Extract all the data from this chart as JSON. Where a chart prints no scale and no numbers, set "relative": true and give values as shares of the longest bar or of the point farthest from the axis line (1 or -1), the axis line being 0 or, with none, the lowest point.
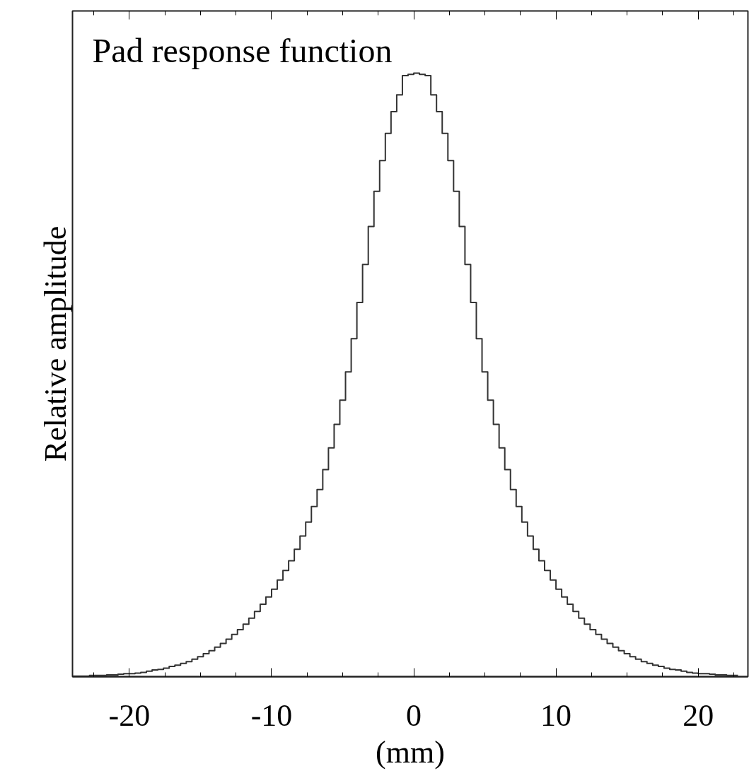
{
  "chart_data": {
    "type": "step",
    "title": "Pad response function",
    "xlabel": "(mm)",
    "ylabel": "Relative amplitude",
    "relative": true,
    "grid": false,
    "tick_labels": "x",
    "xlim": [
      -24,
      23.5
    ],
    "xticks": [
      {
        "value": -20,
        "label": "-20"
      },
      {
        "value": -10,
        "label": "-10"
      },
      {
        "value": 0,
        "label": "0"
      },
      {
        "value": 10,
        "label": "10"
      },
      {
        "value": 20,
        "label": "20"
      }
    ],
    "x": [
      -24.0,
      -23.6,
      -23.2,
      -22.8,
      -22.4,
      -22.0,
      -21.6,
      -21.2,
      -20.8,
      -20.4,
      -20.0,
      -19.6,
      -19.2,
      -18.8,
      -18.4,
      -18.0,
      -17.6,
      -17.2,
      -16.8,
      -16.4,
      -16.0,
      -15.6,
      -15.2,
      -14.8,
      -14.4,
      -14.0,
      -13.6,
      -13.2,
      -12.8,
      -12.4,
      -12.0,
      -11.6,
      -11.2,
      -10.8,
      -10.4,
      -10.0,
      -9.6,
      -9.2,
      -8.8,
      -8.4,
      -8.0,
      -7.6,
      -7.2,
      -6.8,
      -6.4,
      -6.0,
      -5.6,
      -5.2,
      -4.8,
      -4.4,
      -4.0,
      -3.6,
      -3.2,
      -2.8,
      -2.4,
      -2.0,
      -1.6,
      -1.2,
      -0.8,
      -0.4,
      0.0,
      0.4,
      0.8,
      1.2,
      1.6,
      2.0,
      2.4,
      2.8,
      3.2,
      3.6,
      4.0,
      4.4,
      4.8,
      5.2,
      5.6,
      6.0,
      6.4,
      6.8,
      7.2,
      7.6,
      8.0,
      8.4,
      8.8,
      9.2,
      9.6,
      10.0,
      10.4,
      10.8,
      11.2,
      11.6,
      12.0,
      12.4,
      12.8,
      13.2,
      13.6,
      14.0,
      14.4,
      14.8,
      15.2,
      15.6,
      16.0,
      16.4,
      16.8,
      17.2,
      17.6,
      18.0,
      18.4,
      18.8,
      19.2,
      19.6,
      20.0,
      20.4,
      20.8,
      21.2,
      21.6,
      22.0,
      22.4,
      22.8
    ],
    "series": [
      {
        "color": "#333333",
        "values": [
          0.001,
          0.001,
          0.001,
          0.002,
          0.002,
          0.002,
          0.003,
          0.003,
          0.004,
          0.005,
          0.005,
          0.006,
          0.007,
          0.009,
          0.011,
          0.012,
          0.014,
          0.017,
          0.019,
          0.022,
          0.025,
          0.029,
          0.033,
          0.038,
          0.043,
          0.049,
          0.055,
          0.062,
          0.07,
          0.078,
          0.087,
          0.097,
          0.108,
          0.12,
          0.132,
          0.145,
          0.16,
          0.176,
          0.192,
          0.211,
          0.233,
          0.256,
          0.282,
          0.31,
          0.343,
          0.379,
          0.418,
          0.458,
          0.505,
          0.56,
          0.62,
          0.683,
          0.746,
          0.804,
          0.855,
          0.9,
          0.936,
          0.964,
          0.996,
          0.998,
          1.0,
          0.998,
          0.996,
          0.964,
          0.936,
          0.9,
          0.855,
          0.804,
          0.746,
          0.683,
          0.62,
          0.56,
          0.505,
          0.458,
          0.418,
          0.379,
          0.343,
          0.31,
          0.282,
          0.256,
          0.233,
          0.211,
          0.192,
          0.176,
          0.16,
          0.145,
          0.132,
          0.12,
          0.108,
          0.097,
          0.087,
          0.078,
          0.07,
          0.062,
          0.055,
          0.049,
          0.043,
          0.038,
          0.033,
          0.029,
          0.025,
          0.022,
          0.019,
          0.017,
          0.014,
          0.012,
          0.011,
          0.009,
          0.007,
          0.006,
          0.005,
          0.005,
          0.004,
          0.003,
          0.003,
          0.002,
          0.002,
          0.002
        ]
      }
    ]
  }
}
